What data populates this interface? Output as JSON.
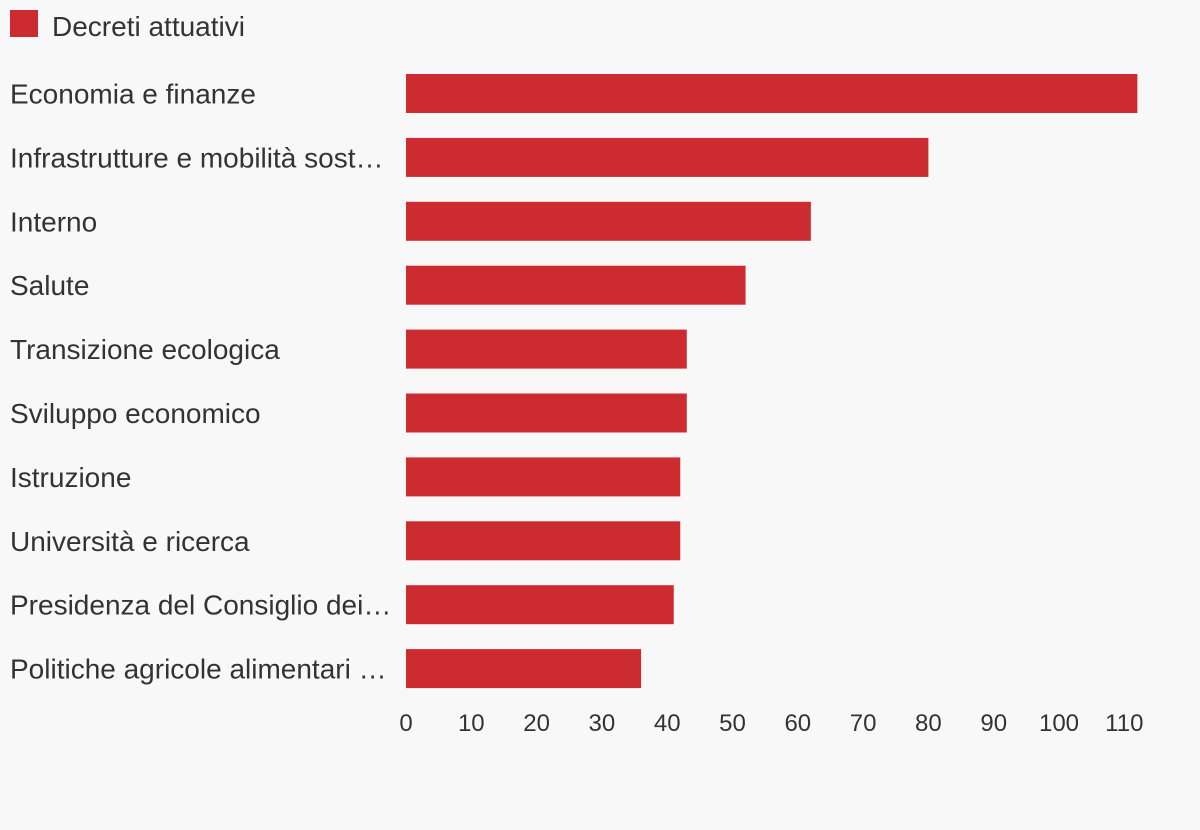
{
  "chart_data": {
    "type": "bar",
    "orientation": "horizontal",
    "categories": [
      "Economia e finanze",
      "Infrastrutture e mobilità sost…",
      "Interno",
      "Salute",
      "Transizione ecologica",
      "Sviluppo economico",
      "Istruzione",
      "Università e ricerca",
      "Presidenza del Consiglio dei…",
      "Politiche agricole alimentari …"
    ],
    "series": [
      {
        "name": "Decreti attuativi",
        "color": "#cc2b30",
        "values": [
          112,
          80,
          62,
          52,
          43,
          43,
          42,
          42,
          41,
          36
        ]
      }
    ],
    "x_ticks": [
      0,
      10,
      20,
      30,
      40,
      50,
      60,
      70,
      80,
      90,
      100,
      110
    ],
    "xlim": [
      0,
      112
    ],
    "grid": false,
    "legend": "top-left",
    "title": "",
    "xlabel": "",
    "ylabel": ""
  }
}
